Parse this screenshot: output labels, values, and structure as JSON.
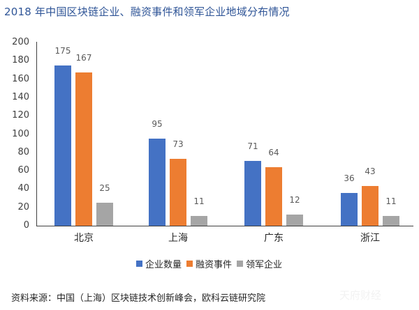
{
  "title": "2018 年中国区块链企业、融资事件和领军企业地域分布情况",
  "source": "资料来源：中国（上海）区块链技术创新峰会，欧科云链研究院",
  "watermark": "天府财经",
  "colors": {
    "企业数量": "#4472c4",
    "融资事件": "#ed7d31",
    "领军企业": "#a5a5a5"
  },
  "legend": [
    "企业数量",
    "融资事件",
    "领军企业"
  ],
  "chart_data": {
    "type": "bar",
    "title": "2018 年中国区块链企业、融资事件和领军企业地域分布情况",
    "categories": [
      "北京",
      "上海",
      "广东",
      "浙江"
    ],
    "series": [
      {
        "name": "企业数量",
        "values": [
          175,
          95,
          71,
          36
        ],
        "color": "#4472c4"
      },
      {
        "name": "融资事件",
        "values": [
          167,
          73,
          64,
          43
        ],
        "color": "#ed7d31"
      },
      {
        "name": "领军企业",
        "values": [
          25,
          11,
          12,
          11
        ],
        "color": "#a5a5a5"
      }
    ],
    "xlabel": "",
    "ylabel": "",
    "ylim": [
      0,
      200
    ],
    "yticks": [
      0,
      20,
      40,
      60,
      80,
      100,
      120,
      140,
      160,
      180,
      200
    ],
    "grid": false,
    "legend_position": "bottom",
    "data_labels": true
  }
}
